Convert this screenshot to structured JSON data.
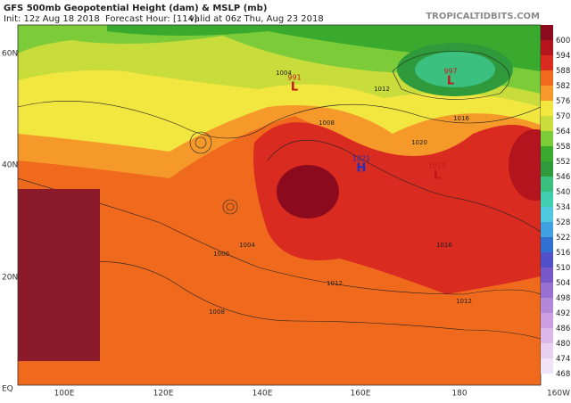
{
  "header": {
    "title": "GFS 500mb Geopotential Height (dam) & MSLP (mb)",
    "init": "Init: 12z Aug 18 2018",
    "forecast_hour": "Forecast Hour: [114]",
    "valid": "valid at 06z Thu, Aug 23 2018",
    "site": "TROPICALTIDBITS.COM"
  },
  "map": {
    "lat_labels": [
      "60N",
      "40N",
      "20N",
      "EQ"
    ],
    "lon_labels": [
      "100E",
      "120E",
      "140E",
      "160E",
      "180",
      "160W"
    ],
    "pressure_centers": [
      {
        "symbol": "L",
        "value": 991
      },
      {
        "symbol": "L",
        "value": 997
      },
      {
        "symbol": "H",
        "value": 1021
      },
      {
        "symbol": "L",
        "value": 1010
      }
    ],
    "isobar_labels": [
      1004,
      1008,
      1012,
      1016,
      1020,
      1016,
      1012,
      1004,
      1000,
      1008,
      1012
    ]
  },
  "colorbar": {
    "levels": [
      600,
      594,
      588,
      582,
      576,
      570,
      564,
      558,
      552,
      546,
      540,
      534,
      528,
      522,
      516,
      510,
      504,
      498,
      492,
      486,
      480,
      474,
      468
    ],
    "colors": [
      "#8b0a1e",
      "#b3141e",
      "#d92b1f",
      "#f06a1e",
      "#f59a2a",
      "#f2e640",
      "#c8dc3c",
      "#7ccc3a",
      "#3aaa2e",
      "#2e9a3c",
      "#3cc080",
      "#40d0b0",
      "#50c8e0",
      "#40a0e0",
      "#3070d0",
      "#5050c8",
      "#7858c8",
      "#9870d0",
      "#b488d8",
      "#cca0e0",
      "#dcb8e8",
      "#e8d0f0",
      "#f0e4f6"
    ]
  }
}
